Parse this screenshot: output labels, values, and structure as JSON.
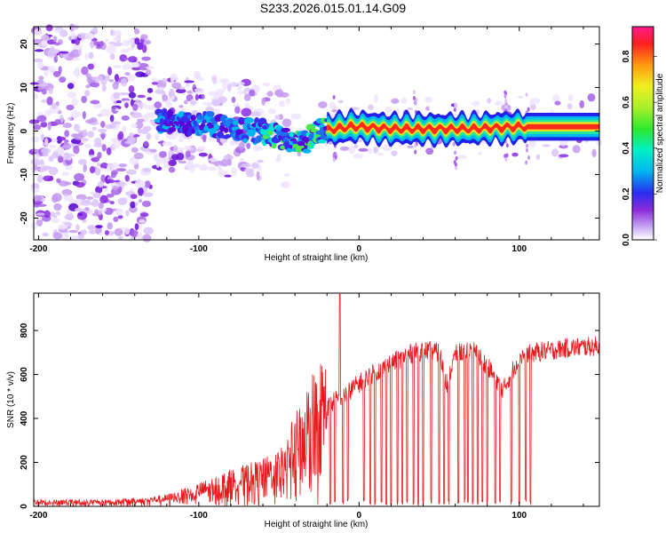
{
  "chart_data": [
    {
      "type": "heatmap",
      "title": "S233.2026.015.01.14.G09",
      "xlabel": "Height of straight line (km)",
      "ylabel": "Frequency (Hz)",
      "xlim": [
        -203,
        150
      ],
      "ylim": [
        -25,
        24
      ],
      "xticks": [
        -200,
        -100,
        0,
        100
      ],
      "yticks": [
        -20,
        -10,
        0,
        10,
        20
      ],
      "xtick_labels": [
        "-200",
        "-100",
        "0",
        "100"
      ],
      "ytick_labels": [
        "-20",
        "-10",
        "0",
        "10",
        "20"
      ],
      "colorbar": {
        "label": "Normalized spectral amplitude",
        "range": [
          0,
          0.93
        ],
        "ticks": [
          0.0,
          0.2,
          0.4,
          0.6,
          0.8
        ],
        "tick_labels": [
          "0.0",
          "0.2",
          "0.4",
          "0.6",
          "0.8"
        ]
      },
      "ridge": {
        "description_points_km_hz": [
          [
            -120,
            2
          ],
          [
            -100,
            2
          ],
          [
            -80,
            0.5
          ],
          [
            -60,
            0
          ],
          [
            -45,
            -2
          ],
          [
            -35,
            -3
          ],
          [
            -25,
            0
          ],
          [
            -15,
            0.5
          ],
          [
            -5,
            1
          ],
          [
            0,
            1
          ],
          [
            20,
            0.5
          ],
          [
            50,
            0.5
          ],
          [
            70,
            0.5
          ],
          [
            100,
            1
          ],
          [
            150,
            1
          ]
        ],
        "strong_from_km": -20,
        "strong_to_km": 150
      }
    },
    {
      "type": "line",
      "title": "",
      "xlabel": "Height of straight line (km)",
      "ylabel": "SNR (10 * v/v)",
      "xlim": [
        -203,
        150
      ],
      "ylim": [
        0,
        970
      ],
      "xticks": [
        -200,
        -100,
        0,
        100
      ],
      "yticks": [
        0,
        200,
        400,
        600,
        800
      ],
      "xtick_labels": [
        "-200",
        "-100",
        "0",
        "100"
      ],
      "ytick_labels": [
        "0",
        "200",
        "400",
        "600",
        "800"
      ],
      "series": [
        {
          "name": "SNR",
          "color": "#e8191c",
          "envelope_x": [
            -203,
            -160,
            -140,
            -120,
            -100,
            -80,
            -60,
            -50,
            -40,
            -30,
            -25,
            -20,
            -15,
            -10,
            -5,
            0,
            10,
            20,
            30,
            40,
            50,
            55,
            60,
            70,
            80,
            90,
            100,
            110,
            120,
            130,
            150
          ],
          "envelope_y": [
            20,
            20,
            25,
            35,
            70,
            110,
            140,
            170,
            270,
            390,
            430,
            450,
            480,
            500,
            530,
            560,
            610,
            650,
            690,
            710,
            700,
            560,
            690,
            720,
            640,
            530,
            680,
            700,
            710,
            720,
            730
          ],
          "spike": {
            "x": -12,
            "y": 965
          },
          "dropouts_x": [
            -18,
            -15,
            -10,
            -7,
            3,
            7,
            10,
            14,
            17,
            20,
            24,
            27,
            30,
            34,
            37,
            40,
            45,
            50,
            53,
            56,
            62,
            66,
            68,
            71,
            74,
            77,
            80,
            85,
            88,
            95,
            100,
            104,
            107
          ]
        }
      ]
    }
  ]
}
